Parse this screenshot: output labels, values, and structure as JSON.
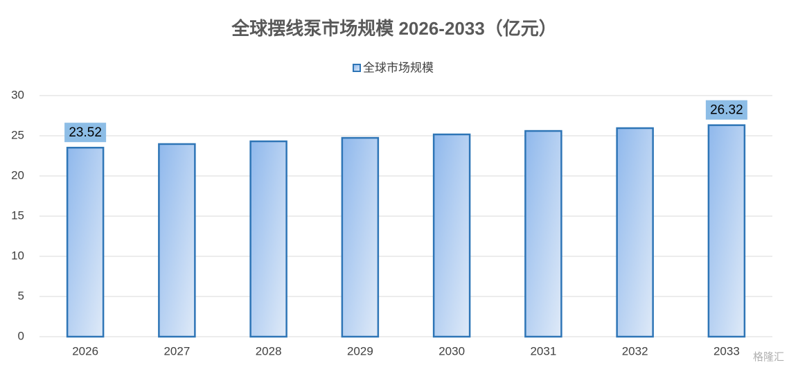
{
  "chart_data": {
    "type": "bar",
    "title": "全球摆线泵市场规模 2026-2033（亿元）",
    "categories": [
      "2026",
      "2027",
      "2028",
      "2029",
      "2030",
      "2031",
      "2032",
      "2033"
    ],
    "series": [
      {
        "name": "全球市场规模",
        "color": "#2e75b6",
        "values": [
          23.52,
          23.97,
          24.31,
          24.74,
          25.17,
          25.6,
          25.95,
          26.32
        ],
        "value_labels": [
          "23.52",
          null,
          null,
          null,
          null,
          null,
          null,
          "26.32"
        ]
      }
    ],
    "ylim": [
      0,
      30
    ],
    "yticks": [
      0,
      5,
      10,
      15,
      20,
      25,
      30
    ],
    "grid": true,
    "legend": "top",
    "watermark": "格隆汇"
  }
}
